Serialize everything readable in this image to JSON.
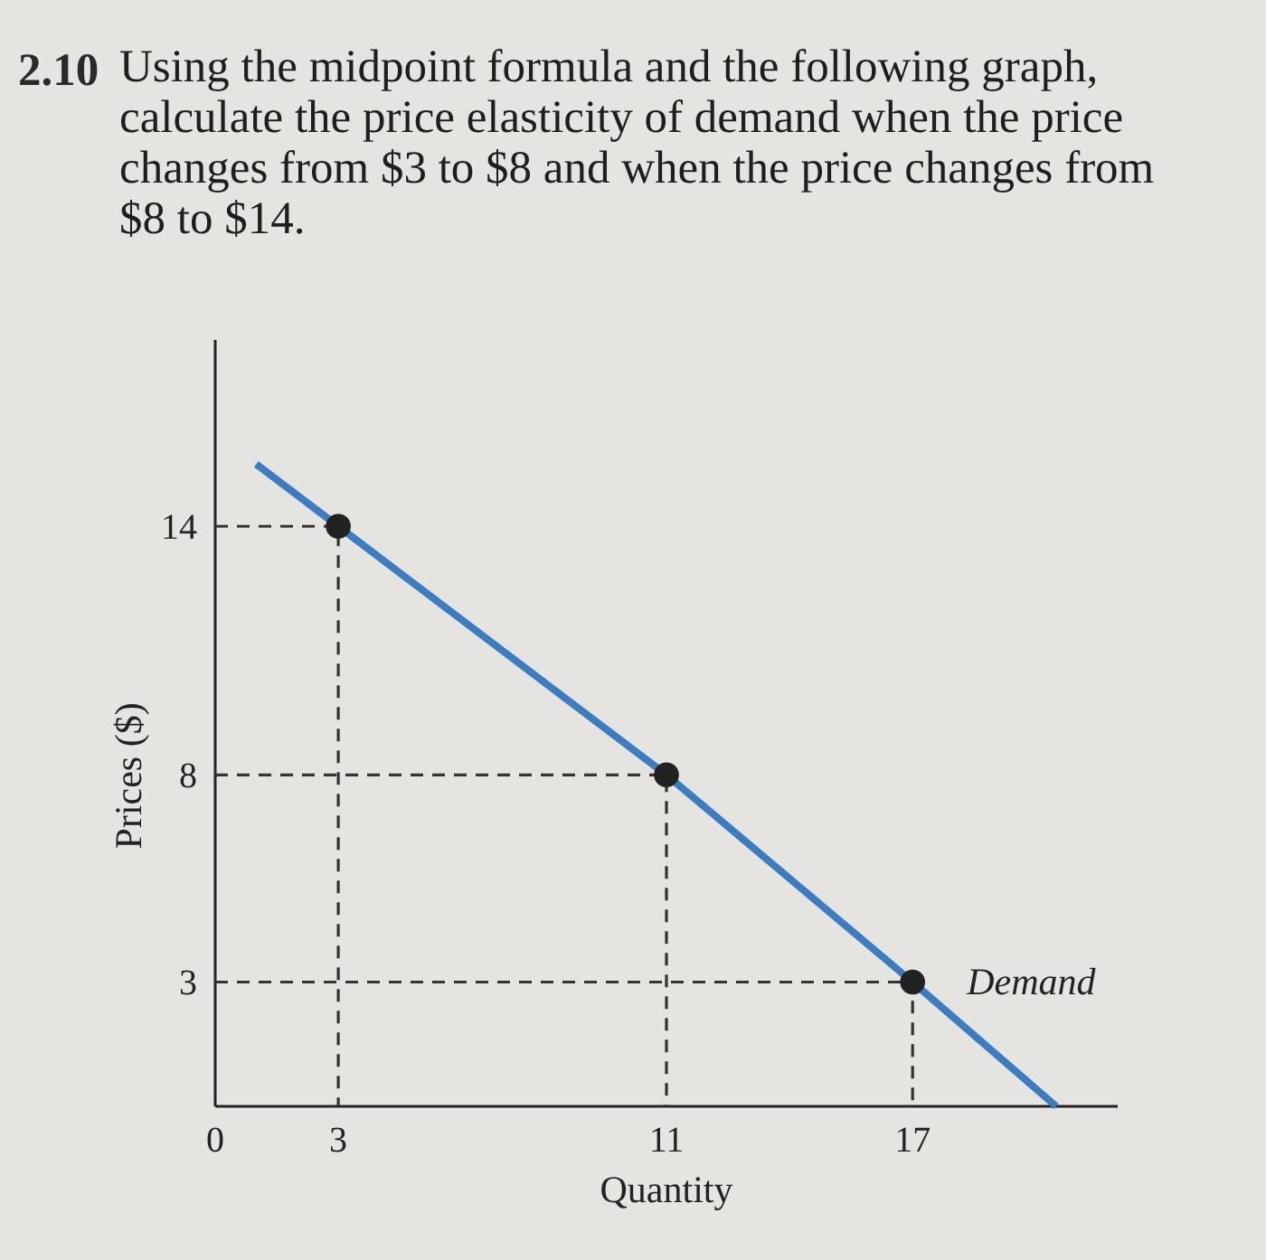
{
  "chart_data": {
    "type": "line",
    "title": "2.10 Using the midpoint formula and the following graph, calculate the price elasticity of demand when the price changes from $3 to $8 and when the price changes from $8 to $14.",
    "xlabel": "Quantity",
    "ylabel": "Prices ($)",
    "xlim": [
      0,
      22
    ],
    "ylim": [
      0,
      18.5
    ],
    "xticks": [
      0,
      3,
      11,
      17
    ],
    "yticks": [
      3,
      8,
      14
    ],
    "series": [
      {
        "type": "line",
        "line_style": "dashed",
        "color": "#333333",
        "marker": "none",
        "x": [
          0,
          3,
          3
        ],
        "values": [
          14,
          14,
          0
        ]
      },
      {
        "type": "line",
        "line_style": "dashed",
        "color": "#333333",
        "marker": "none",
        "x": [
          0,
          11,
          11
        ],
        "values": [
          8,
          8,
          0
        ]
      },
      {
        "type": "line",
        "line_style": "dashed",
        "color": "#333333",
        "marker": "none",
        "x": [
          0,
          17,
          17
        ],
        "values": [
          3,
          3,
          0
        ]
      },
      {
        "type": "line",
        "name": "Demand",
        "line_style": "solid",
        "color": "#3b7dc0",
        "marker": "none",
        "x": [
          1,
          3,
          11,
          17,
          20.5
        ],
        "values": [
          15.5,
          14,
          8,
          3,
          0
        ]
      },
      {
        "type": "scatter",
        "color": "#222222",
        "marker": "circle",
        "x": [
          3,
          11,
          17
        ],
        "values": [
          14,
          8,
          3
        ]
      }
    ]
  }
}
